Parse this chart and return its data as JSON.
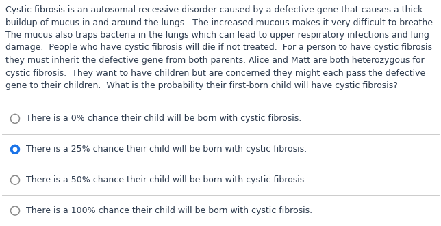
{
  "background_color": "#ffffff",
  "text_color": "#2d3b4e",
  "paragraph_lines": [
    "Cystic fibrosis is an autosomal recessive disorder caused by a defective gene that causes a thick",
    "buildup of mucus in and around the lungs.  The increased mucous makes it very difficult to breathe.",
    "The mucus also traps bacteria in the lungs which can lead to upper respiratory infections and lung",
    "damage.  People who have cystic fibrosis will die if not treated.  For a person to have cystic fibrosis",
    "they must inherit the defective gene from both parents. Alice and Matt are both heterozygous for",
    "cystic fibrosis.  They want to have children but are concerned they might each pass the defective",
    "gene to their children.  What is the probability their first-born child will have cystic fibrosis?"
  ],
  "options": [
    "There is a 0% chance their child will be born with cystic fibrosis.",
    "There is a 25% chance their child will be born with cystic fibrosis.",
    "There is a 50% chance their child will be born with cystic fibrosis.",
    "There is a 100% chance their child will be born with cystic fibrosis."
  ],
  "selected_index": 1,
  "font_size_paragraph": 9.0,
  "font_size_options": 9.0,
  "line_color": "#cccccc",
  "radio_unselected_edge": "#888888",
  "radio_selected_fill": "#1a73e8",
  "radio_selected_edge": "#1a73e8"
}
